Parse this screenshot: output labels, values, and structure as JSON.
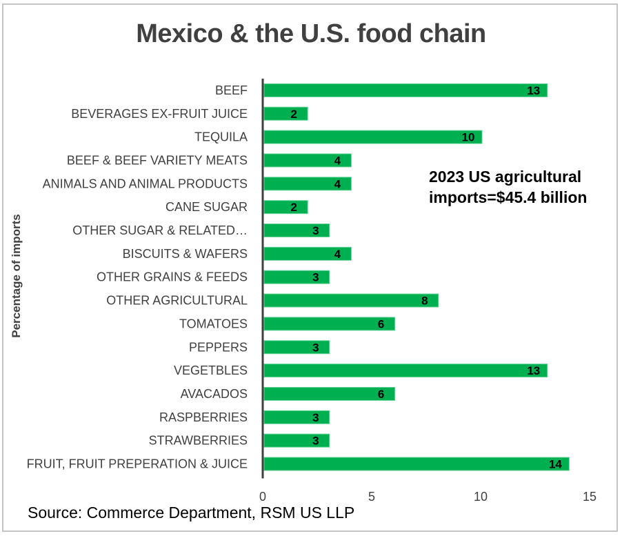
{
  "colors": {
    "bar": "#00b050",
    "bar_edge": "#66d49a",
    "axis": "#404040"
  },
  "chart_data": {
    "type": "bar",
    "orientation": "horizontal",
    "title": "Mexico & the U.S. food chain",
    "xlabel": "",
    "ylabel": "Percentage of imports",
    "xlim": [
      0,
      15
    ],
    "xticks": [
      0,
      5,
      10,
      15
    ],
    "grid": false,
    "annotation": [
      "2023 US agricultural",
      "imports=$45.4 billion"
    ],
    "source": "Source: Commerce Department, RSM US LLP",
    "categories": [
      "BEEF",
      "BEVERAGES EX-FRUIT JUICE",
      "TEQUILA",
      "BEEF & BEEF VARIETY MEATS",
      "ANIMALS AND ANIMAL PRODUCTS",
      "CANE SUGAR",
      "OTHER SUGAR & RELATED…",
      "BISCUITS & WAFERS",
      "OTHER GRAINS & FEEDS",
      "OTHER AGRICULTURAL",
      "TOMATOES",
      "PEPPERS",
      "VEGETBLES",
      "AVACADOS",
      "RASPBERRIES",
      "STRAWBERRIES",
      "FRUIT, FRUIT PREPERATION & JUICE"
    ],
    "values": [
      13,
      2,
      10,
      4,
      4,
      2,
      3,
      4,
      3,
      8,
      6,
      3,
      13,
      6,
      3,
      3,
      14
    ],
    "data_labels": [
      "13",
      "2",
      "10",
      "4",
      "4",
      "2",
      "3",
      "4",
      "3",
      "8",
      "6",
      "3",
      "13",
      "6",
      "3",
      "3",
      "14"
    ]
  }
}
